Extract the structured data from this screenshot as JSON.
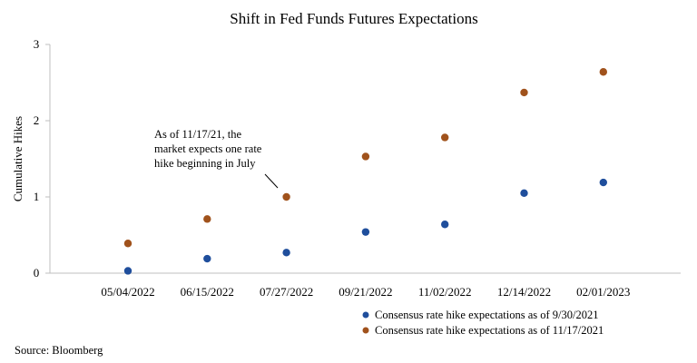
{
  "chart_data": {
    "type": "scatter",
    "title": "Shift in Fed Funds Futures Expectations",
    "xlabel": "",
    "ylabel": "Cumulative Hikes",
    "categories": [
      "05/04/2022",
      "06/15/2022",
      "07/27/2022",
      "09/21/2022",
      "11/02/2022",
      "12/14/2022",
      "02/01/2023"
    ],
    "ylim": [
      0,
      3
    ],
    "yticks": [
      "0",
      "1",
      "2",
      "3"
    ],
    "grid": false,
    "legend_position": "bottom-right",
    "series": [
      {
        "name": "Consensus rate hike expectations as of 9/30/2021",
        "color": "#1f4e9c",
        "values": [
          0.03,
          0.19,
          0.27,
          0.54,
          0.64,
          1.05,
          1.19
        ]
      },
      {
        "name": "Consensus rate hike expectations as of 11/17/2021",
        "color": "#a0521c",
        "values": [
          0.39,
          0.71,
          1.0,
          1.53,
          1.78,
          2.37,
          2.64
        ]
      }
    ],
    "annotation": {
      "lines": [
        "As of 11/17/21, the",
        "market expects one rate",
        "hike beginning in July"
      ]
    }
  },
  "source": "Source: Bloomberg"
}
